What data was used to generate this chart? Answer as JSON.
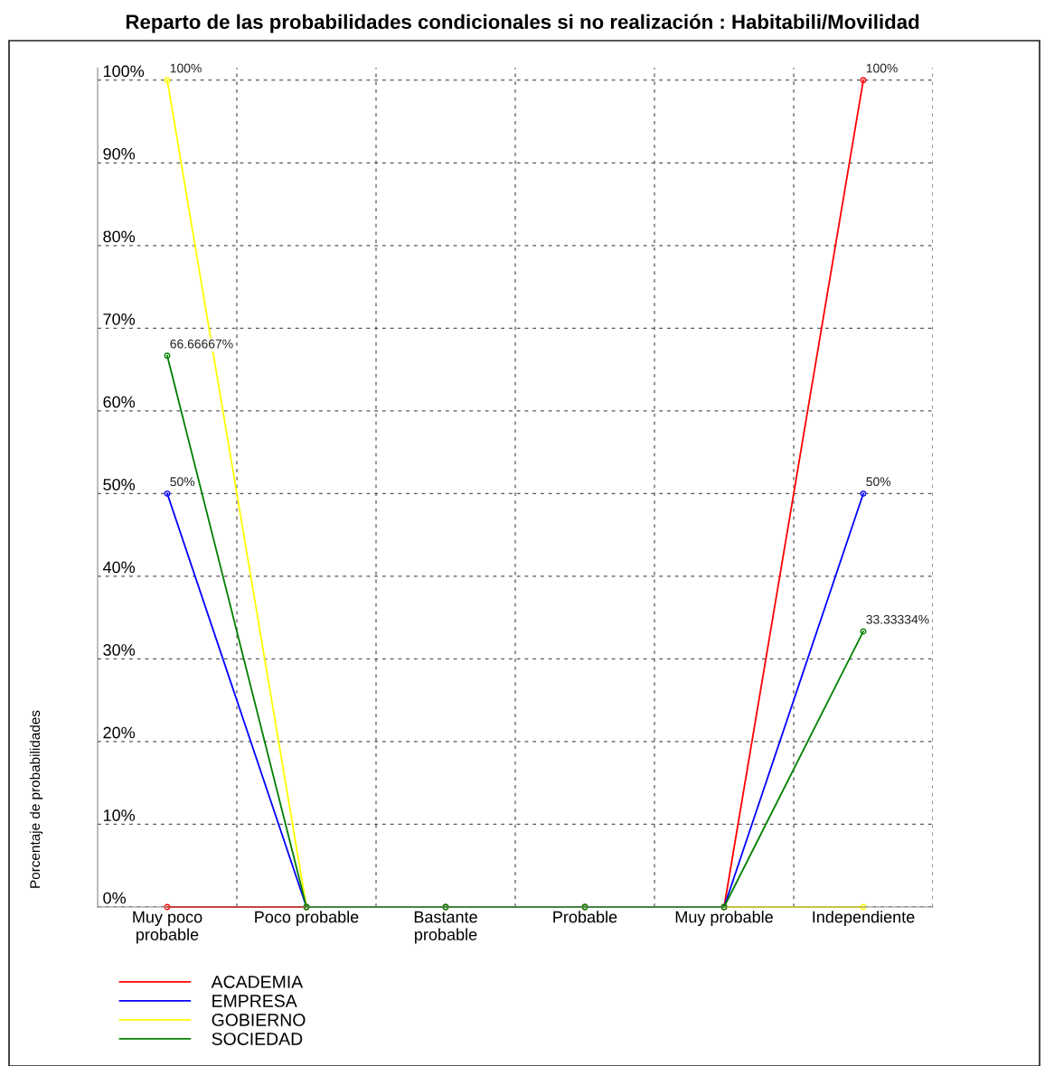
{
  "chart_data": {
    "type": "line",
    "title": "Reparto de las probabilidades condicionales si no realización : Habitabili/Movilidad",
    "ylabel": "Porcentaje de probabilidades",
    "categories": [
      "Muy poco\nprobable",
      "Poco probable",
      "Bastante\nprobable",
      "Probable",
      "Muy probable",
      "Independiente"
    ],
    "series": [
      {
        "name": "ACADEMIA",
        "color": "#ff0000",
        "values": [
          0,
          0,
          0,
          0,
          0,
          100
        ],
        "value_labels": [
          null,
          null,
          null,
          null,
          null,
          "100%"
        ]
      },
      {
        "name": "EMPRESA",
        "color": "#0000ff",
        "values": [
          50,
          0,
          0,
          0,
          0,
          50
        ],
        "value_labels": [
          "50%",
          null,
          null,
          null,
          null,
          "50%"
        ]
      },
      {
        "name": "GOBIERNO",
        "color": "#ffff00",
        "values": [
          100,
          0,
          0,
          0,
          0,
          0
        ],
        "value_labels": [
          "100%",
          null,
          null,
          null,
          null,
          null
        ]
      },
      {
        "name": "SOCIEDAD",
        "color": "#008000",
        "values": [
          66.66667,
          0,
          0,
          0,
          0,
          33.33334
        ],
        "value_labels": [
          "66.66667%",
          null,
          null,
          null,
          null,
          "33.33334%"
        ]
      }
    ],
    "ylim": [
      0,
      101.5
    ],
    "yticks": [
      {
        "value": 0,
        "label": "0%"
      },
      {
        "value": 10,
        "label": "10%"
      },
      {
        "value": 20,
        "label": "20%"
      },
      {
        "value": 30,
        "label": "30%"
      },
      {
        "value": 40,
        "label": "40%"
      },
      {
        "value": 50,
        "label": "50%"
      },
      {
        "value": 60,
        "label": "60%"
      },
      {
        "value": 70,
        "label": "70%"
      },
      {
        "value": 80,
        "label": "80%"
      },
      {
        "value": 90,
        "label": "90%"
      },
      {
        "value": 100,
        "label": "100%"
      }
    ],
    "grid": true,
    "legend": "bottom left",
    "marker": "circle",
    "line_style": "solid"
  }
}
